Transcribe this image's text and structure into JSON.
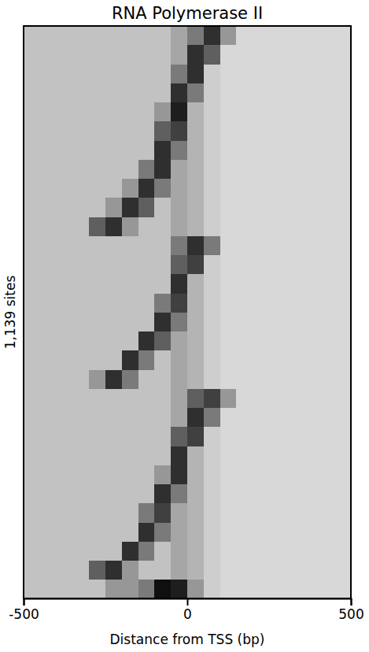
{
  "chart_data": {
    "type": "heatmap",
    "title": "RNA Polymerase II",
    "x_label": "Distance from TSS (bp)",
    "y_label": "1,139 sites",
    "xlim": [
      -500,
      500
    ],
    "xticks": [
      -500,
      0,
      500
    ],
    "ylim": [
      0,
      1139
    ],
    "tick_labels": "x",
    "x_bins": [
      -500,
      -450,
      -400,
      -350,
      -300,
      -250,
      -200,
      -150,
      -100,
      -50,
      0,
      50,
      100,
      150,
      200,
      250,
      300,
      350,
      400,
      450,
      500
    ],
    "y_bins": [
      0,
      38,
      76,
      114,
      152,
      190,
      228,
      266,
      304,
      342,
      380,
      418,
      456,
      494,
      532,
      570,
      608,
      646,
      684,
      722,
      760,
      798,
      836,
      874,
      912,
      950,
      988,
      1026,
      1064,
      1102,
      1139
    ],
    "cells": [
      [
        0.35,
        0.35,
        0.35,
        0.35,
        0.35,
        0.35,
        0.35,
        0.35,
        0.35,
        0.45,
        0.6,
        0.85,
        0.5,
        0.25,
        0.25,
        0.25,
        0.25,
        0.25,
        0.25,
        0.25
      ],
      [
        0.35,
        0.35,
        0.35,
        0.35,
        0.35,
        0.35,
        0.35,
        0.35,
        0.35,
        0.45,
        0.85,
        0.7,
        0.25,
        0.25,
        0.25,
        0.25,
        0.25,
        0.25,
        0.25,
        0.25
      ],
      [
        0.35,
        0.35,
        0.35,
        0.35,
        0.35,
        0.35,
        0.35,
        0.35,
        0.35,
        0.6,
        0.85,
        0.3,
        0.25,
        0.25,
        0.25,
        0.25,
        0.25,
        0.25,
        0.25,
        0.25
      ],
      [
        0.35,
        0.35,
        0.35,
        0.35,
        0.35,
        0.35,
        0.35,
        0.35,
        0.35,
        0.85,
        0.6,
        0.3,
        0.25,
        0.25,
        0.25,
        0.25,
        0.25,
        0.25,
        0.25,
        0.25
      ],
      [
        0.35,
        0.35,
        0.35,
        0.35,
        0.35,
        0.35,
        0.35,
        0.35,
        0.5,
        0.9,
        0.4,
        0.3,
        0.25,
        0.25,
        0.25,
        0.25,
        0.25,
        0.25,
        0.25,
        0.25
      ],
      [
        0.35,
        0.35,
        0.35,
        0.35,
        0.35,
        0.35,
        0.35,
        0.35,
        0.7,
        0.8,
        0.4,
        0.3,
        0.25,
        0.25,
        0.25,
        0.25,
        0.25,
        0.25,
        0.25,
        0.25
      ],
      [
        0.35,
        0.35,
        0.35,
        0.35,
        0.35,
        0.35,
        0.35,
        0.35,
        0.85,
        0.6,
        0.4,
        0.3,
        0.25,
        0.25,
        0.25,
        0.25,
        0.25,
        0.25,
        0.25,
        0.25
      ],
      [
        0.35,
        0.35,
        0.35,
        0.35,
        0.35,
        0.35,
        0.35,
        0.6,
        0.85,
        0.45,
        0.4,
        0.3,
        0.25,
        0.25,
        0.25,
        0.25,
        0.25,
        0.25,
        0.25,
        0.25
      ],
      [
        0.35,
        0.35,
        0.35,
        0.35,
        0.35,
        0.35,
        0.5,
        0.85,
        0.6,
        0.45,
        0.4,
        0.3,
        0.25,
        0.25,
        0.25,
        0.25,
        0.25,
        0.25,
        0.25,
        0.25
      ],
      [
        0.35,
        0.35,
        0.35,
        0.35,
        0.35,
        0.5,
        0.85,
        0.7,
        0.35,
        0.45,
        0.4,
        0.3,
        0.25,
        0.25,
        0.25,
        0.25,
        0.25,
        0.25,
        0.25,
        0.25
      ],
      [
        0.35,
        0.35,
        0.35,
        0.35,
        0.7,
        0.85,
        0.5,
        0.35,
        0.35,
        0.45,
        0.4,
        0.3,
        0.25,
        0.25,
        0.25,
        0.25,
        0.25,
        0.25,
        0.25,
        0.25
      ],
      [
        0.35,
        0.35,
        0.35,
        0.35,
        0.35,
        0.35,
        0.35,
        0.35,
        0.35,
        0.6,
        0.85,
        0.6,
        0.25,
        0.25,
        0.25,
        0.25,
        0.25,
        0.25,
        0.25,
        0.25
      ],
      [
        0.35,
        0.35,
        0.35,
        0.35,
        0.35,
        0.35,
        0.35,
        0.35,
        0.35,
        0.7,
        0.8,
        0.3,
        0.25,
        0.25,
        0.25,
        0.25,
        0.25,
        0.25,
        0.25,
        0.25
      ],
      [
        0.35,
        0.35,
        0.35,
        0.35,
        0.35,
        0.35,
        0.35,
        0.35,
        0.35,
        0.85,
        0.4,
        0.3,
        0.25,
        0.25,
        0.25,
        0.25,
        0.25,
        0.25,
        0.25,
        0.25
      ],
      [
        0.35,
        0.35,
        0.35,
        0.35,
        0.35,
        0.35,
        0.35,
        0.35,
        0.6,
        0.8,
        0.4,
        0.3,
        0.25,
        0.25,
        0.25,
        0.25,
        0.25,
        0.25,
        0.25,
        0.25
      ],
      [
        0.35,
        0.35,
        0.35,
        0.35,
        0.35,
        0.35,
        0.35,
        0.35,
        0.85,
        0.6,
        0.4,
        0.3,
        0.25,
        0.25,
        0.25,
        0.25,
        0.25,
        0.25,
        0.25,
        0.25
      ],
      [
        0.35,
        0.35,
        0.35,
        0.35,
        0.35,
        0.35,
        0.35,
        0.85,
        0.7,
        0.45,
        0.4,
        0.3,
        0.25,
        0.25,
        0.25,
        0.25,
        0.25,
        0.25,
        0.25,
        0.25
      ],
      [
        0.35,
        0.35,
        0.35,
        0.35,
        0.35,
        0.35,
        0.85,
        0.6,
        0.35,
        0.45,
        0.4,
        0.3,
        0.25,
        0.25,
        0.25,
        0.25,
        0.25,
        0.25,
        0.25,
        0.25
      ],
      [
        0.35,
        0.35,
        0.35,
        0.35,
        0.5,
        0.85,
        0.6,
        0.35,
        0.35,
        0.45,
        0.4,
        0.3,
        0.25,
        0.25,
        0.25,
        0.25,
        0.25,
        0.25,
        0.25,
        0.25
      ],
      [
        0.35,
        0.35,
        0.35,
        0.35,
        0.35,
        0.35,
        0.35,
        0.35,
        0.35,
        0.45,
        0.7,
        0.8,
        0.5,
        0.25,
        0.25,
        0.25,
        0.25,
        0.25,
        0.25,
        0.25
      ],
      [
        0.35,
        0.35,
        0.35,
        0.35,
        0.35,
        0.35,
        0.35,
        0.35,
        0.35,
        0.45,
        0.85,
        0.6,
        0.25,
        0.25,
        0.25,
        0.25,
        0.25,
        0.25,
        0.25,
        0.25
      ],
      [
        0.35,
        0.35,
        0.35,
        0.35,
        0.35,
        0.35,
        0.35,
        0.35,
        0.35,
        0.7,
        0.8,
        0.3,
        0.25,
        0.25,
        0.25,
        0.25,
        0.25,
        0.25,
        0.25,
        0.25
      ],
      [
        0.35,
        0.35,
        0.35,
        0.35,
        0.35,
        0.35,
        0.35,
        0.35,
        0.35,
        0.85,
        0.4,
        0.3,
        0.25,
        0.25,
        0.25,
        0.25,
        0.25,
        0.25,
        0.25,
        0.25
      ],
      [
        0.35,
        0.35,
        0.35,
        0.35,
        0.35,
        0.35,
        0.35,
        0.35,
        0.5,
        0.85,
        0.4,
        0.3,
        0.25,
        0.25,
        0.25,
        0.25,
        0.25,
        0.25,
        0.25,
        0.25
      ],
      [
        0.35,
        0.35,
        0.35,
        0.35,
        0.35,
        0.35,
        0.35,
        0.35,
        0.85,
        0.6,
        0.4,
        0.3,
        0.25,
        0.25,
        0.25,
        0.25,
        0.25,
        0.25,
        0.25,
        0.25
      ],
      [
        0.35,
        0.35,
        0.35,
        0.35,
        0.35,
        0.35,
        0.35,
        0.6,
        0.8,
        0.45,
        0.4,
        0.3,
        0.25,
        0.25,
        0.25,
        0.25,
        0.25,
        0.25,
        0.25,
        0.25
      ],
      [
        0.35,
        0.35,
        0.35,
        0.35,
        0.35,
        0.35,
        0.35,
        0.85,
        0.6,
        0.45,
        0.4,
        0.3,
        0.25,
        0.25,
        0.25,
        0.25,
        0.25,
        0.25,
        0.25,
        0.25
      ],
      [
        0.35,
        0.35,
        0.35,
        0.35,
        0.35,
        0.35,
        0.85,
        0.6,
        0.35,
        0.45,
        0.4,
        0.3,
        0.25,
        0.25,
        0.25,
        0.25,
        0.25,
        0.25,
        0.25,
        0.25
      ],
      [
        0.35,
        0.35,
        0.35,
        0.35,
        0.7,
        0.85,
        0.5,
        0.35,
        0.35,
        0.45,
        0.4,
        0.3,
        0.25,
        0.25,
        0.25,
        0.25,
        0.25,
        0.25,
        0.25,
        0.25
      ],
      [
        0.35,
        0.35,
        0.35,
        0.35,
        0.35,
        0.5,
        0.5,
        0.6,
        0.95,
        0.9,
        0.5,
        0.3,
        0.25,
        0.25,
        0.25,
        0.25,
        0.25,
        0.25,
        0.25,
        0.25
      ]
    ]
  }
}
